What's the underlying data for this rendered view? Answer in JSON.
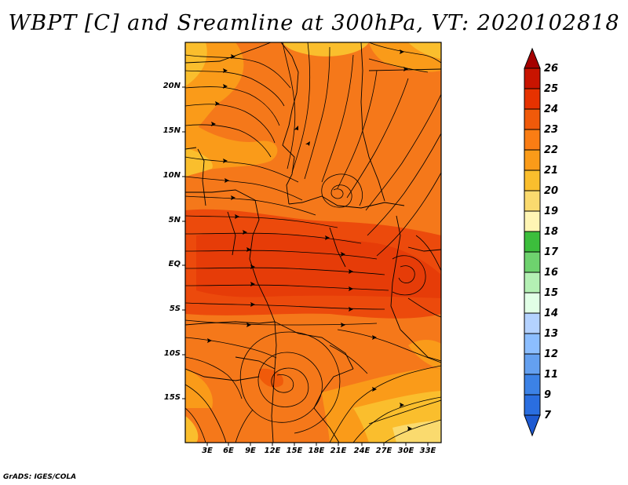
{
  "title": "WBPT [C] and Sreamline at 300hPa, VT: 2020102818",
  "footer": "GrADS: IGES/COLA",
  "map": {
    "lat_labels": [
      "20N",
      "15N",
      "10N",
      "5N",
      "EQ",
      "5S",
      "10S",
      "15S"
    ],
    "lon_labels": [
      "3E",
      "6E",
      "9E",
      "12E",
      "15E",
      "18E",
      "21E",
      "24E",
      "27E",
      "30E",
      "33E"
    ]
  },
  "colorbar": {
    "labels": [
      "26",
      "25",
      "24",
      "23",
      "22",
      "21",
      "20",
      "19",
      "18",
      "17",
      "16",
      "15",
      "14",
      "13",
      "12",
      "11",
      "9",
      "7"
    ],
    "colors": [
      "#a50000",
      "#c81400",
      "#e63200",
      "#f05a0a",
      "#fa7d14",
      "#fa9b19",
      "#fabe2d",
      "#fada6e",
      "#fff5b4",
      "#3cbe3c",
      "#6ed26e",
      "#b4f0b4",
      "#e1ffe6",
      "#b4d2ff",
      "#8cbeff",
      "#64a0f0",
      "#3c82e6",
      "#1e5ad2"
    ]
  }
}
